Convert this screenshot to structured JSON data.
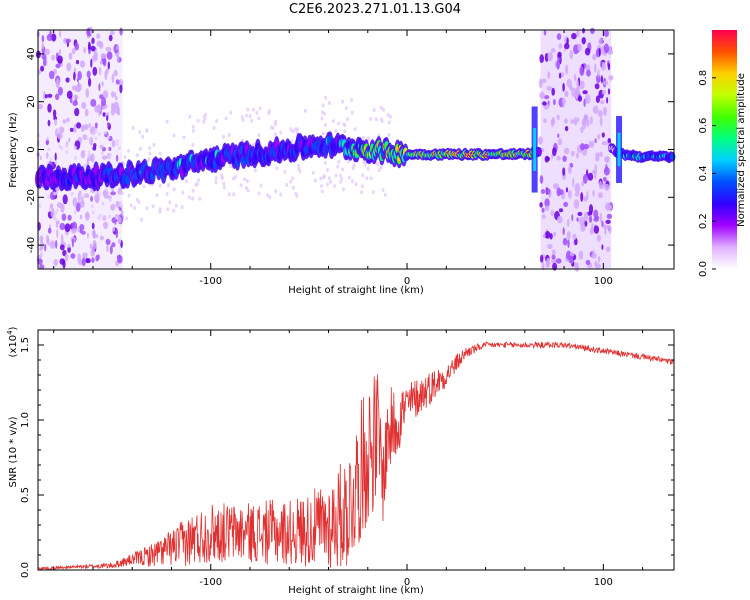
{
  "page_title": "C2E6.2023.271.01.13.G04",
  "chart_data": [
    {
      "type": "heatmap",
      "xlabel": "Height of straight line (km)",
      "ylabel": "Frequency (Hz)",
      "xlim": [
        -188,
        136
      ],
      "ylim": [
        -50,
        50
      ],
      "x_ticks": [
        -100,
        0,
        100
      ],
      "y_ticks": [
        -40,
        -20,
        0,
        20,
        40
      ],
      "colorbar": {
        "label": "Normalized spectral amplitude",
        "range": [
          0.0,
          1.0
        ],
        "ticks": [
          "0.0",
          "0.2",
          "0.4",
          "0.6",
          "0.8"
        ],
        "colors": [
          "#ffffff",
          "#e0b0ff",
          "#a000ff",
          "#3000ff",
          "#0050ff",
          "#00d0ff",
          "#00ff80",
          "#40ff00",
          "#c0ff00",
          "#ffd000",
          "#ff5000",
          "#ff0050"
        ]
      },
      "ridge": {
        "x": [
          -188,
          -150,
          -120,
          -100,
          -80,
          -60,
          -45,
          -30,
          -20,
          -10,
          0,
          20,
          40,
          62,
          68,
          104,
          110,
          120,
          136
        ],
        "freq": [
          -12,
          -11,
          -8,
          -4,
          -2,
          0,
          2,
          1,
          0,
          -1,
          -2,
          -2,
          -2,
          -2,
          0,
          0,
          -2,
          -3,
          -3
        ],
        "peak_amplitude": [
          0.3,
          0.4,
          0.45,
          0.45,
          0.4,
          0.4,
          0.4,
          0.5,
          0.7,
          0.8,
          0.8,
          0.9,
          0.9,
          0.9,
          0.2,
          0.1,
          0.6,
          0.5,
          0.5
        ]
      },
      "noise_bands": [
        [
          -188,
          -145
        ],
        [
          68,
          104
        ]
      ]
    },
    {
      "type": "line",
      "xlabel": "Height of straight line (km)",
      "ylabel": "SNR (10 * v/v)",
      "y_scale_label": "(x10",
      "y_scale_exp": "4",
      "y_scale_close": ")",
      "xlim": [
        -188,
        136
      ],
      "ylim": [
        0.0,
        1.6
      ],
      "x_ticks": [
        -100,
        0,
        100
      ],
      "y_ticks": [
        "0.0",
        "0.5",
        "1.0",
        "1.5"
      ],
      "line_color": "#e03030",
      "series": [
        {
          "x": [
            -188,
            -170,
            -150,
            -140,
            -130,
            -120,
            -110,
            -100,
            -90,
            -80,
            -70,
            -60,
            -50,
            -40,
            -30,
            -25,
            -20,
            -15,
            -12,
            -10,
            -5,
            0,
            10,
            20,
            30,
            40,
            50,
            60,
            70,
            80,
            90,
            100,
            110,
            120,
            130,
            136
          ],
          "mean": [
            0.01,
            0.02,
            0.03,
            0.07,
            0.1,
            0.15,
            0.2,
            0.25,
            0.25,
            0.25,
            0.25,
            0.25,
            0.27,
            0.3,
            0.4,
            0.6,
            0.8,
            0.9,
            0.6,
            0.9,
            1.0,
            1.1,
            1.2,
            1.3,
            1.45,
            1.5,
            1.5,
            1.5,
            1.5,
            1.5,
            1.48,
            1.46,
            1.44,
            1.42,
            1.4,
            1.38
          ],
          "spread": [
            0.01,
            0.01,
            0.02,
            0.04,
            0.08,
            0.12,
            0.18,
            0.2,
            0.2,
            0.2,
            0.22,
            0.22,
            0.25,
            0.3,
            0.4,
            0.45,
            0.5,
            0.45,
            0.3,
            0.3,
            0.25,
            0.15,
            0.12,
            0.08,
            0.04,
            0.02,
            0.02,
            0.02,
            0.02,
            0.02,
            0.02,
            0.02,
            0.02,
            0.02,
            0.02,
            0.02
          ]
        }
      ]
    }
  ]
}
